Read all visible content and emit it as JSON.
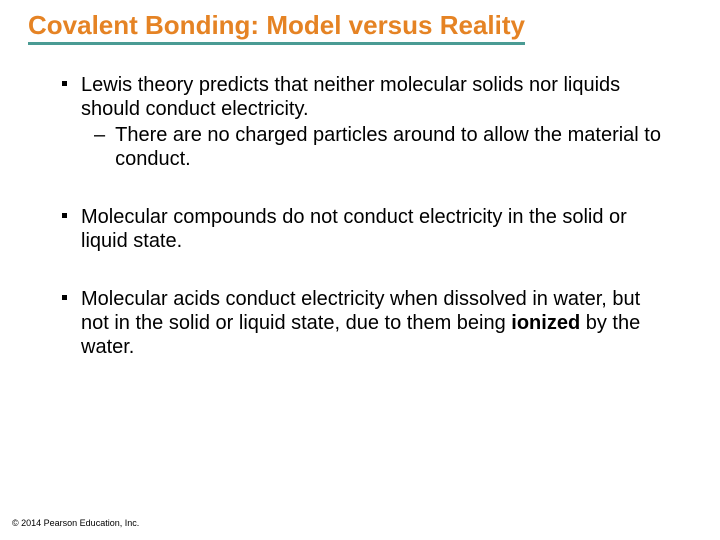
{
  "title": {
    "text": "Covalent Bonding: Model versus Reality",
    "color": "#e58324",
    "underline_color": "#4a9b94",
    "fontsize": 26,
    "fontweight": "bold"
  },
  "bullets": [
    {
      "level1": "Lewis theory predicts that neither molecular solids nor liquids should conduct electricity.",
      "level2": "There are no charged particles around to allow the material to conduct."
    },
    {
      "level1": "Molecular compounds do not conduct electricity in the solid or liquid state."
    },
    {
      "level1_pre": "Molecular acids conduct electricity when dissolved in water, but not in the solid or liquid state, due to them being ",
      "level1_bold": "ionized",
      "level1_post": " by the water."
    }
  ],
  "body": {
    "fontsize": 20,
    "color": "#000000"
  },
  "copyright": "© 2014 Pearson Education, Inc.",
  "background_color": "#ffffff"
}
